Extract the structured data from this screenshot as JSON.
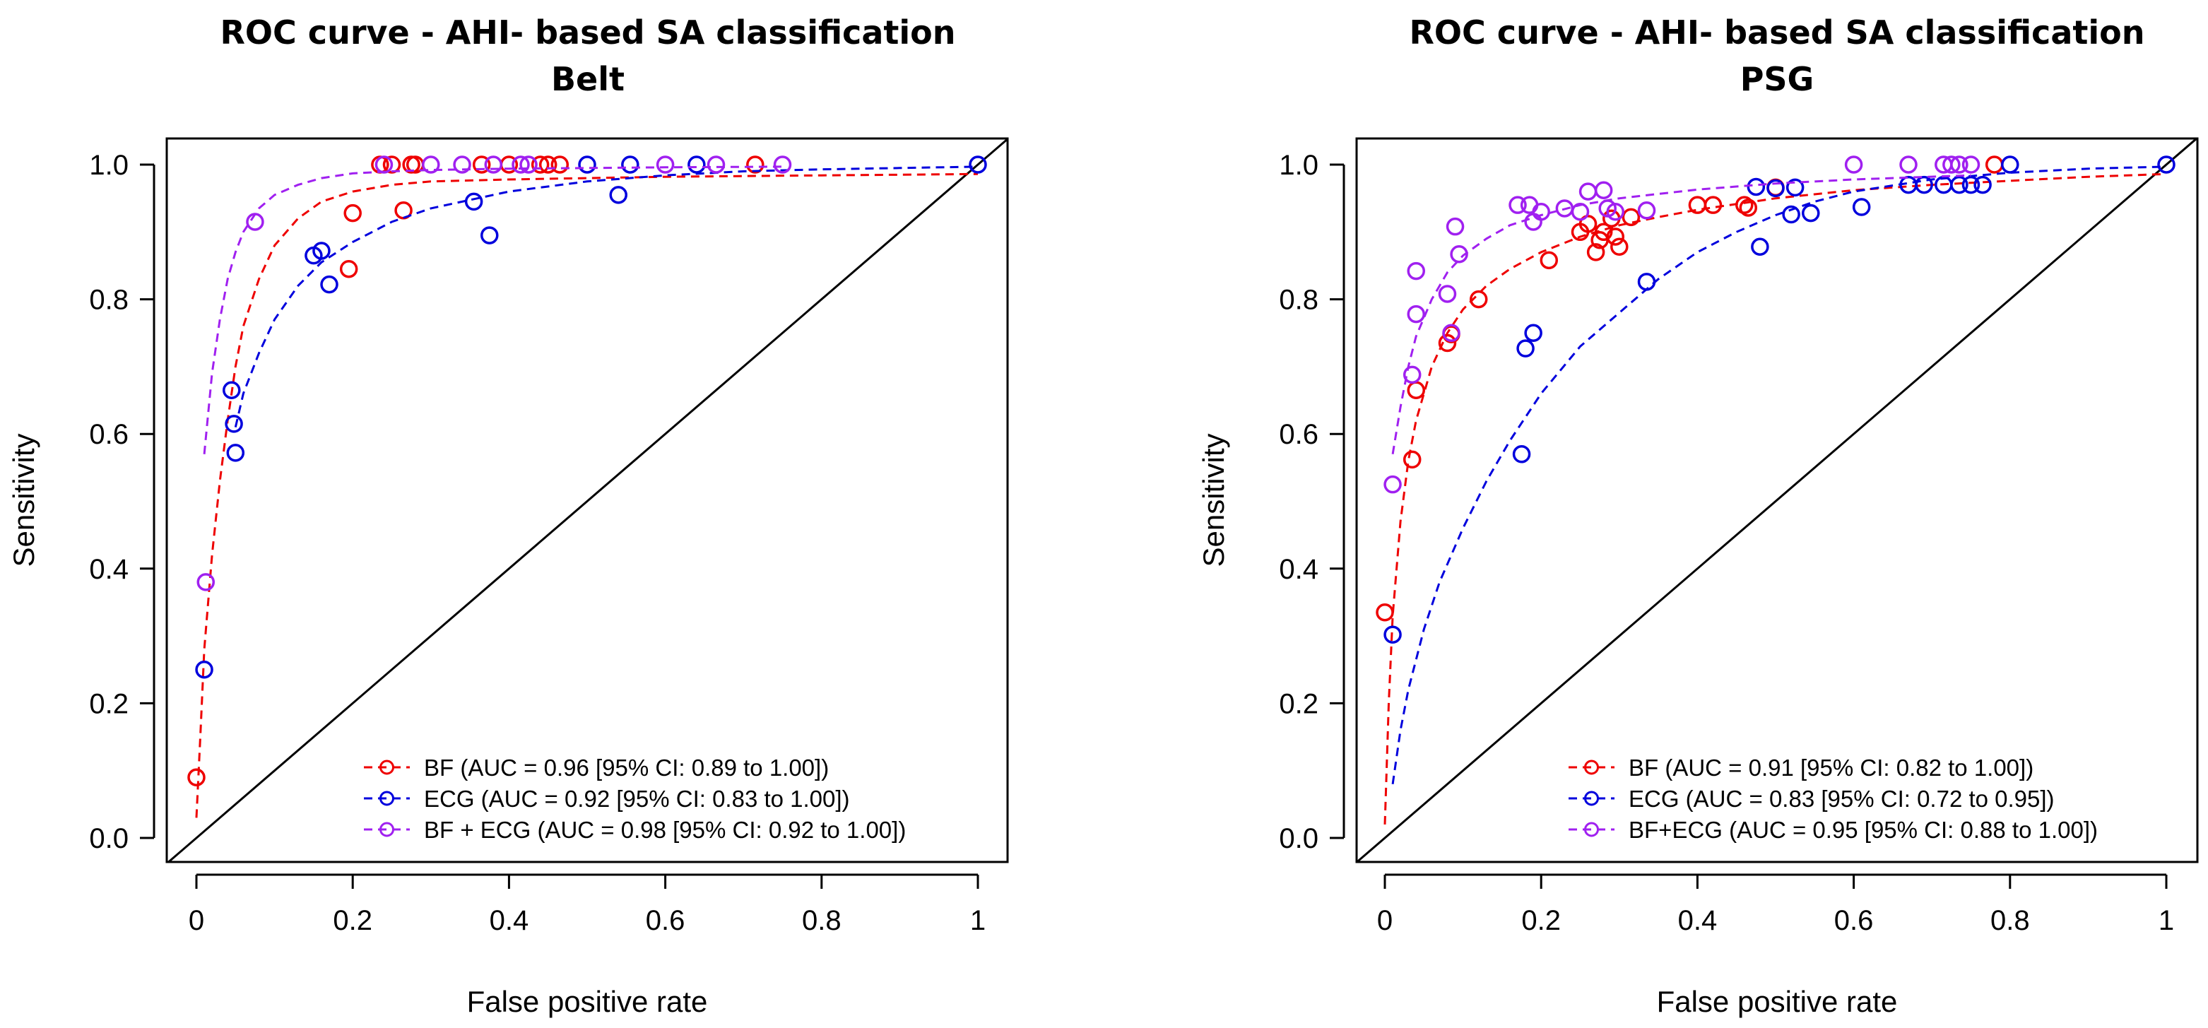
{
  "chart_data": [
    {
      "type": "line",
      "title": "ROC curve -  AHI- based SA classification",
      "subtitle": "Belt",
      "xlabel": "False positive rate",
      "ylabel": "Sensitivity",
      "xlim": [
        0,
        1
      ],
      "ylim": [
        0,
        1
      ],
      "x_ticks": [
        "0",
        "0.2",
        "0.4",
        "0.6",
        "0.8",
        "1"
      ],
      "y_ticks": [
        "0.0",
        "0.2",
        "0.4",
        "0.6",
        "0.8",
        "1.0"
      ],
      "grid": false,
      "legend_position": "bottom-right",
      "reference_line": "diagonal",
      "series": [
        {
          "name": "BF (AUC = 0.96 [95% CI: 0.89 to 1.00])",
          "color": "#ee0000",
          "points": [
            [
              0.0,
              0.09
            ],
            [
              0.195,
              0.845
            ],
            [
              0.2,
              0.928
            ],
            [
              0.235,
              1.0
            ],
            [
              0.25,
              1.0
            ],
            [
              0.265,
              0.932
            ],
            [
              0.275,
              1.0
            ],
            [
              0.28,
              1.0
            ],
            [
              0.365,
              1.0
            ],
            [
              0.4,
              1.0
            ],
            [
              0.44,
              1.0
            ],
            [
              0.45,
              1.0
            ],
            [
              0.465,
              1.0
            ],
            [
              0.715,
              1.0
            ]
          ],
          "curve": [
            [
              0.0,
              0.03
            ],
            [
              0.005,
              0.15
            ],
            [
              0.01,
              0.28
            ],
            [
              0.02,
              0.42
            ],
            [
              0.03,
              0.53
            ],
            [
              0.04,
              0.62
            ],
            [
              0.05,
              0.7
            ],
            [
              0.06,
              0.76
            ],
            [
              0.08,
              0.83
            ],
            [
              0.1,
              0.88
            ],
            [
              0.13,
              0.92
            ],
            [
              0.16,
              0.945
            ],
            [
              0.2,
              0.96
            ],
            [
              0.25,
              0.97
            ],
            [
              0.3,
              0.975
            ],
            [
              0.4,
              0.978
            ],
            [
              0.5,
              0.98
            ],
            [
              0.6,
              0.982
            ],
            [
              0.7,
              0.983
            ],
            [
              0.8,
              0.984
            ],
            [
              0.9,
              0.985
            ],
            [
              1.0,
              0.986
            ]
          ]
        },
        {
          "name": "ECG (AUC = 0.92 [95% CI: 0.83 to 1.00])",
          "color": "#0000dd",
          "points": [
            [
              0.01,
              0.25
            ],
            [
              0.045,
              0.665
            ],
            [
              0.048,
              0.615
            ],
            [
              0.05,
              0.572
            ],
            [
              0.15,
              0.865
            ],
            [
              0.16,
              0.872
            ],
            [
              0.17,
              0.822
            ],
            [
              0.355,
              0.945
            ],
            [
              0.375,
              0.895
            ],
            [
              0.5,
              1.0
            ],
            [
              0.54,
              0.955
            ],
            [
              0.555,
              1.0
            ],
            [
              0.64,
              1.0
            ],
            [
              1.0,
              1.0
            ]
          ],
          "curve": [
            [
              0.05,
              0.61
            ],
            [
              0.06,
              0.66
            ],
            [
              0.08,
              0.72
            ],
            [
              0.1,
              0.77
            ],
            [
              0.13,
              0.82
            ],
            [
              0.16,
              0.855
            ],
            [
              0.2,
              0.885
            ],
            [
              0.25,
              0.915
            ],
            [
              0.3,
              0.935
            ],
            [
              0.4,
              0.96
            ],
            [
              0.5,
              0.975
            ],
            [
              0.6,
              0.984
            ],
            [
              0.7,
              0.99
            ],
            [
              0.8,
              0.993
            ],
            [
              0.9,
              0.995
            ],
            [
              1.0,
              0.997
            ]
          ]
        },
        {
          "name": "BF + ECG (AUC = 0.98 [95% CI: 0.92 to 1.00])",
          "color": "#a020f0",
          "points": [
            [
              0.012,
              0.38
            ],
            [
              0.075,
              0.915
            ],
            [
              0.24,
              1.0
            ],
            [
              0.3,
              1.0
            ],
            [
              0.34,
              1.0
            ],
            [
              0.38,
              1.0
            ],
            [
              0.415,
              1.0
            ],
            [
              0.425,
              1.0
            ],
            [
              0.6,
              1.0
            ],
            [
              0.665,
              1.0
            ],
            [
              0.75,
              1.0
            ]
          ],
          "curve": [
            [
              0.01,
              0.57
            ],
            [
              0.02,
              0.69
            ],
            [
              0.03,
              0.77
            ],
            [
              0.04,
              0.83
            ],
            [
              0.05,
              0.87
            ],
            [
              0.06,
              0.9
            ],
            [
              0.08,
              0.935
            ],
            [
              0.1,
              0.955
            ],
            [
              0.13,
              0.97
            ],
            [
              0.16,
              0.98
            ],
            [
              0.2,
              0.987
            ],
            [
              0.25,
              0.99
            ],
            [
              0.3,
              0.992
            ],
            [
              0.4,
              0.994
            ],
            [
              0.5,
              0.995
            ],
            [
              0.6,
              0.996
            ],
            [
              0.75,
              0.997
            ]
          ]
        }
      ]
    },
    {
      "type": "line",
      "title": "ROC curve -  AHI- based SA classification",
      "subtitle": "PSG",
      "xlabel": "False positive rate",
      "ylabel": "Sensitivity",
      "xlim": [
        0,
        1
      ],
      "ylim": [
        0,
        1
      ],
      "x_ticks": [
        "0",
        "0.2",
        "0.4",
        "0.6",
        "0.8",
        "1"
      ],
      "y_ticks": [
        "0.0",
        "0.2",
        "0.4",
        "0.6",
        "0.8",
        "1.0"
      ],
      "grid": false,
      "legend_position": "bottom-right",
      "reference_line": "diagonal",
      "series": [
        {
          "name": "BF (AUC = 0.91 [95% CI: 0.82 to 1.00])",
          "color": "#ee0000",
          "points": [
            [
              0.0,
              0.335
            ],
            [
              0.035,
              0.562
            ],
            [
              0.04,
              0.665
            ],
            [
              0.08,
              0.735
            ],
            [
              0.085,
              0.748
            ],
            [
              0.12,
              0.8
            ],
            [
              0.21,
              0.858
            ],
            [
              0.25,
              0.9
            ],
            [
              0.26,
              0.912
            ],
            [
              0.27,
              0.87
            ],
            [
              0.275,
              0.888
            ],
            [
              0.28,
              0.9
            ],
            [
              0.29,
              0.92
            ],
            [
              0.295,
              0.893
            ],
            [
              0.3,
              0.878
            ],
            [
              0.315,
              0.922
            ],
            [
              0.4,
              0.94
            ],
            [
              0.42,
              0.94
            ],
            [
              0.46,
              0.94
            ],
            [
              0.465,
              0.936
            ],
            [
              0.5,
              0.966
            ],
            [
              0.78,
              1.0
            ]
          ],
          "curve": [
            [
              0.0,
              0.02
            ],
            [
              0.005,
              0.2
            ],
            [
              0.01,
              0.33
            ],
            [
              0.02,
              0.47
            ],
            [
              0.03,
              0.56
            ],
            [
              0.04,
              0.62
            ],
            [
              0.06,
              0.7
            ],
            [
              0.08,
              0.75
            ],
            [
              0.1,
              0.785
            ],
            [
              0.13,
              0.82
            ],
            [
              0.16,
              0.845
            ],
            [
              0.2,
              0.87
            ],
            [
              0.25,
              0.893
            ],
            [
              0.3,
              0.91
            ],
            [
              0.35,
              0.922
            ],
            [
              0.4,
              0.933
            ],
            [
              0.5,
              0.95
            ],
            [
              0.6,
              0.962
            ],
            [
              0.7,
              0.97
            ],
            [
              0.8,
              0.976
            ],
            [
              0.9,
              0.982
            ],
            [
              1.0,
              0.986
            ]
          ]
        },
        {
          "name": "ECG (AUC = 0.83 [95% CI: 0.72 to 0.95])",
          "color": "#0000dd",
          "points": [
            [
              0.01,
              0.302
            ],
            [
              0.175,
              0.57
            ],
            [
              0.18,
              0.727
            ],
            [
              0.19,
              0.75
            ],
            [
              0.335,
              0.826
            ],
            [
              0.475,
              0.967
            ],
            [
              0.48,
              0.878
            ],
            [
              0.5,
              0.965
            ],
            [
              0.52,
              0.926
            ],
            [
              0.525,
              0.966
            ],
            [
              0.545,
              0.928
            ],
            [
              0.61,
              0.937
            ],
            [
              0.67,
              0.97
            ],
            [
              0.69,
              0.97
            ],
            [
              0.715,
              0.97
            ],
            [
              0.735,
              0.97
            ],
            [
              0.75,
              0.97
            ],
            [
              0.765,
              0.97
            ],
            [
              0.8,
              1.0
            ],
            [
              1.0,
              1.0
            ]
          ],
          "curve": [
            [
              0.01,
              0.08
            ],
            [
              0.02,
              0.16
            ],
            [
              0.03,
              0.22
            ],
            [
              0.05,
              0.31
            ],
            [
              0.07,
              0.38
            ],
            [
              0.1,
              0.46
            ],
            [
              0.13,
              0.53
            ],
            [
              0.16,
              0.59
            ],
            [
              0.2,
              0.66
            ],
            [
              0.25,
              0.73
            ],
            [
              0.3,
              0.78
            ],
            [
              0.35,
              0.83
            ],
            [
              0.4,
              0.87
            ],
            [
              0.45,
              0.9
            ],
            [
              0.5,
              0.925
            ],
            [
              0.55,
              0.945
            ],
            [
              0.6,
              0.96
            ],
            [
              0.7,
              0.978
            ],
            [
              0.8,
              0.988
            ],
            [
              0.9,
              0.994
            ],
            [
              1.0,
              0.997
            ]
          ]
        },
        {
          "name": "BF+ECG (AUC = 0.95 [95% CI: 0.88 to 1.00])",
          "color": "#a020f0",
          "points": [
            [
              0.01,
              0.525
            ],
            [
              0.035,
              0.688
            ],
            [
              0.04,
              0.778
            ],
            [
              0.04,
              0.842
            ],
            [
              0.08,
              0.808
            ],
            [
              0.085,
              0.75
            ],
            [
              0.09,
              0.908
            ],
            [
              0.095,
              0.867
            ],
            [
              0.17,
              0.94
            ],
            [
              0.185,
              0.94
            ],
            [
              0.19,
              0.915
            ],
            [
              0.2,
              0.93
            ],
            [
              0.23,
              0.935
            ],
            [
              0.25,
              0.93
            ],
            [
              0.26,
              0.96
            ],
            [
              0.28,
              0.962
            ],
            [
              0.285,
              0.935
            ],
            [
              0.295,
              0.93
            ],
            [
              0.335,
              0.932
            ],
            [
              0.6,
              1.0
            ],
            [
              0.67,
              1.0
            ],
            [
              0.715,
              1.0
            ],
            [
              0.725,
              1.0
            ],
            [
              0.735,
              1.0
            ],
            [
              0.75,
              1.0
            ]
          ],
          "curve": [
            [
              0.01,
              0.57
            ],
            [
              0.02,
              0.64
            ],
            [
              0.03,
              0.7
            ],
            [
              0.04,
              0.745
            ],
            [
              0.06,
              0.8
            ],
            [
              0.08,
              0.84
            ],
            [
              0.1,
              0.865
            ],
            [
              0.13,
              0.89
            ],
            [
              0.16,
              0.91
            ],
            [
              0.2,
              0.925
            ],
            [
              0.25,
              0.94
            ],
            [
              0.3,
              0.95
            ],
            [
              0.4,
              0.963
            ],
            [
              0.5,
              0.972
            ],
            [
              0.6,
              0.978
            ],
            [
              0.75,
              0.984
            ]
          ]
        }
      ]
    }
  ]
}
